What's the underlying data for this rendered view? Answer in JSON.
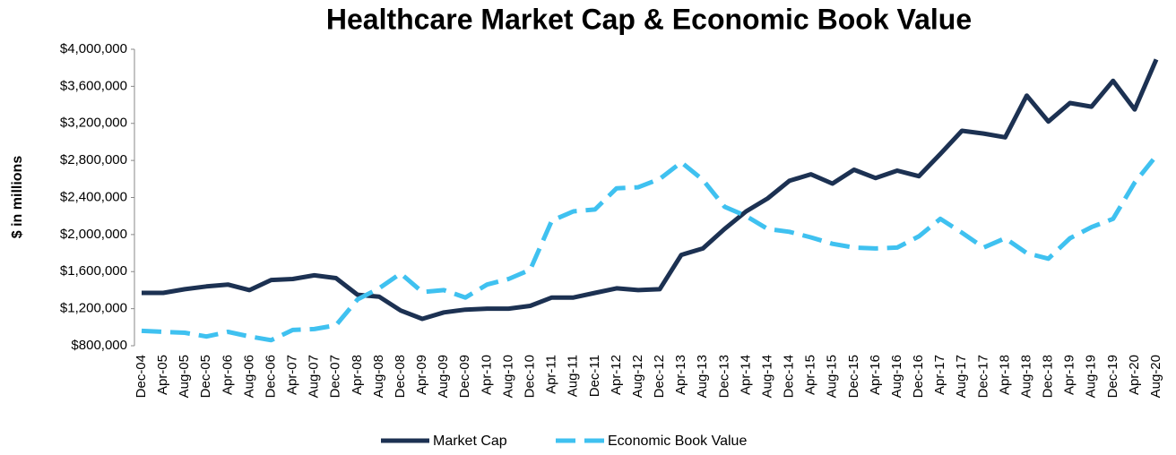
{
  "chart_data": {
    "type": "line",
    "title": "Healthcare Market Cap & Economic Book Value",
    "y_label": "$ in millions",
    "categories": [
      "Dec-04",
      "Apr-05",
      "Aug-05",
      "Dec-05",
      "Apr-06",
      "Aug-06",
      "Dec-06",
      "Apr-07",
      "Aug-07",
      "Dec-07",
      "Apr-08",
      "Aug-08",
      "Dec-08",
      "Apr-09",
      "Aug-09",
      "Dec-09",
      "Apr-10",
      "Aug-10",
      "Dec-10",
      "Apr-11",
      "Aug-11",
      "Dec-11",
      "Apr-12",
      "Aug-12",
      "Dec-12",
      "Apr-13",
      "Aug-13",
      "Dec-13",
      "Apr-14",
      "Aug-14",
      "Dec-14",
      "Apr-15",
      "Aug-15",
      "Dec-15",
      "Apr-16",
      "Aug-16",
      "Dec-16",
      "Apr-17",
      "Aug-17",
      "Dec-17",
      "Apr-18",
      "Aug-18",
      "Dec-18",
      "Apr-19",
      "Aug-19",
      "Dec-19",
      "Apr-20",
      "Aug-20"
    ],
    "series": [
      {
        "name": "Market Cap",
        "color": "#1c3152",
        "dash": "solid",
        "values": [
          1370000,
          1370000,
          1410000,
          1440000,
          1460000,
          1400000,
          1510000,
          1520000,
          1560000,
          1530000,
          1350000,
          1330000,
          1180000,
          1090000,
          1160000,
          1190000,
          1200000,
          1200000,
          1230000,
          1320000,
          1320000,
          1370000,
          1420000,
          1400000,
          1410000,
          1780000,
          1850000,
          2060000,
          2250000,
          2390000,
          2580000,
          2650000,
          2550000,
          2700000,
          2610000,
          2690000,
          2630000,
          2870000,
          3120000,
          3090000,
          3050000,
          3500000,
          3220000,
          3420000,
          3380000,
          3660000,
          3350000,
          3890000
        ]
      },
      {
        "name": "Economic Book Value",
        "color": "#3fc1f0",
        "dash": "dashed",
        "values": [
          960000,
          950000,
          940000,
          900000,
          950000,
          900000,
          860000,
          970000,
          980000,
          1020000,
          1300000,
          1420000,
          1580000,
          1380000,
          1400000,
          1320000,
          1460000,
          1520000,
          1620000,
          2150000,
          2250000,
          2270000,
          2500000,
          2510000,
          2600000,
          2780000,
          2590000,
          2300000,
          2200000,
          2060000,
          2030000,
          1970000,
          1900000,
          1860000,
          1850000,
          1860000,
          1980000,
          2170000,
          2020000,
          1860000,
          1960000,
          1800000,
          1740000,
          1960000,
          2080000,
          2170000,
          2560000,
          2850000
        ]
      }
    ],
    "ylim": [
      800000,
      4000000
    ],
    "yticks": [
      {
        "value": 800000,
        "label": "$800,000"
      },
      {
        "value": 1200000,
        "label": "$1,200,000"
      },
      {
        "value": 1600000,
        "label": "$1,600,000"
      },
      {
        "value": 2000000,
        "label": "$2,000,000"
      },
      {
        "value": 2400000,
        "label": "$2,400,000"
      },
      {
        "value": 2800000,
        "label": "$2,800,000"
      },
      {
        "value": 3200000,
        "label": "$3,200,000"
      },
      {
        "value": 3600000,
        "label": "$3,600,000"
      },
      {
        "value": 4000000,
        "label": "$4,000,000"
      }
    ],
    "grid": false,
    "legend": "bottom"
  }
}
